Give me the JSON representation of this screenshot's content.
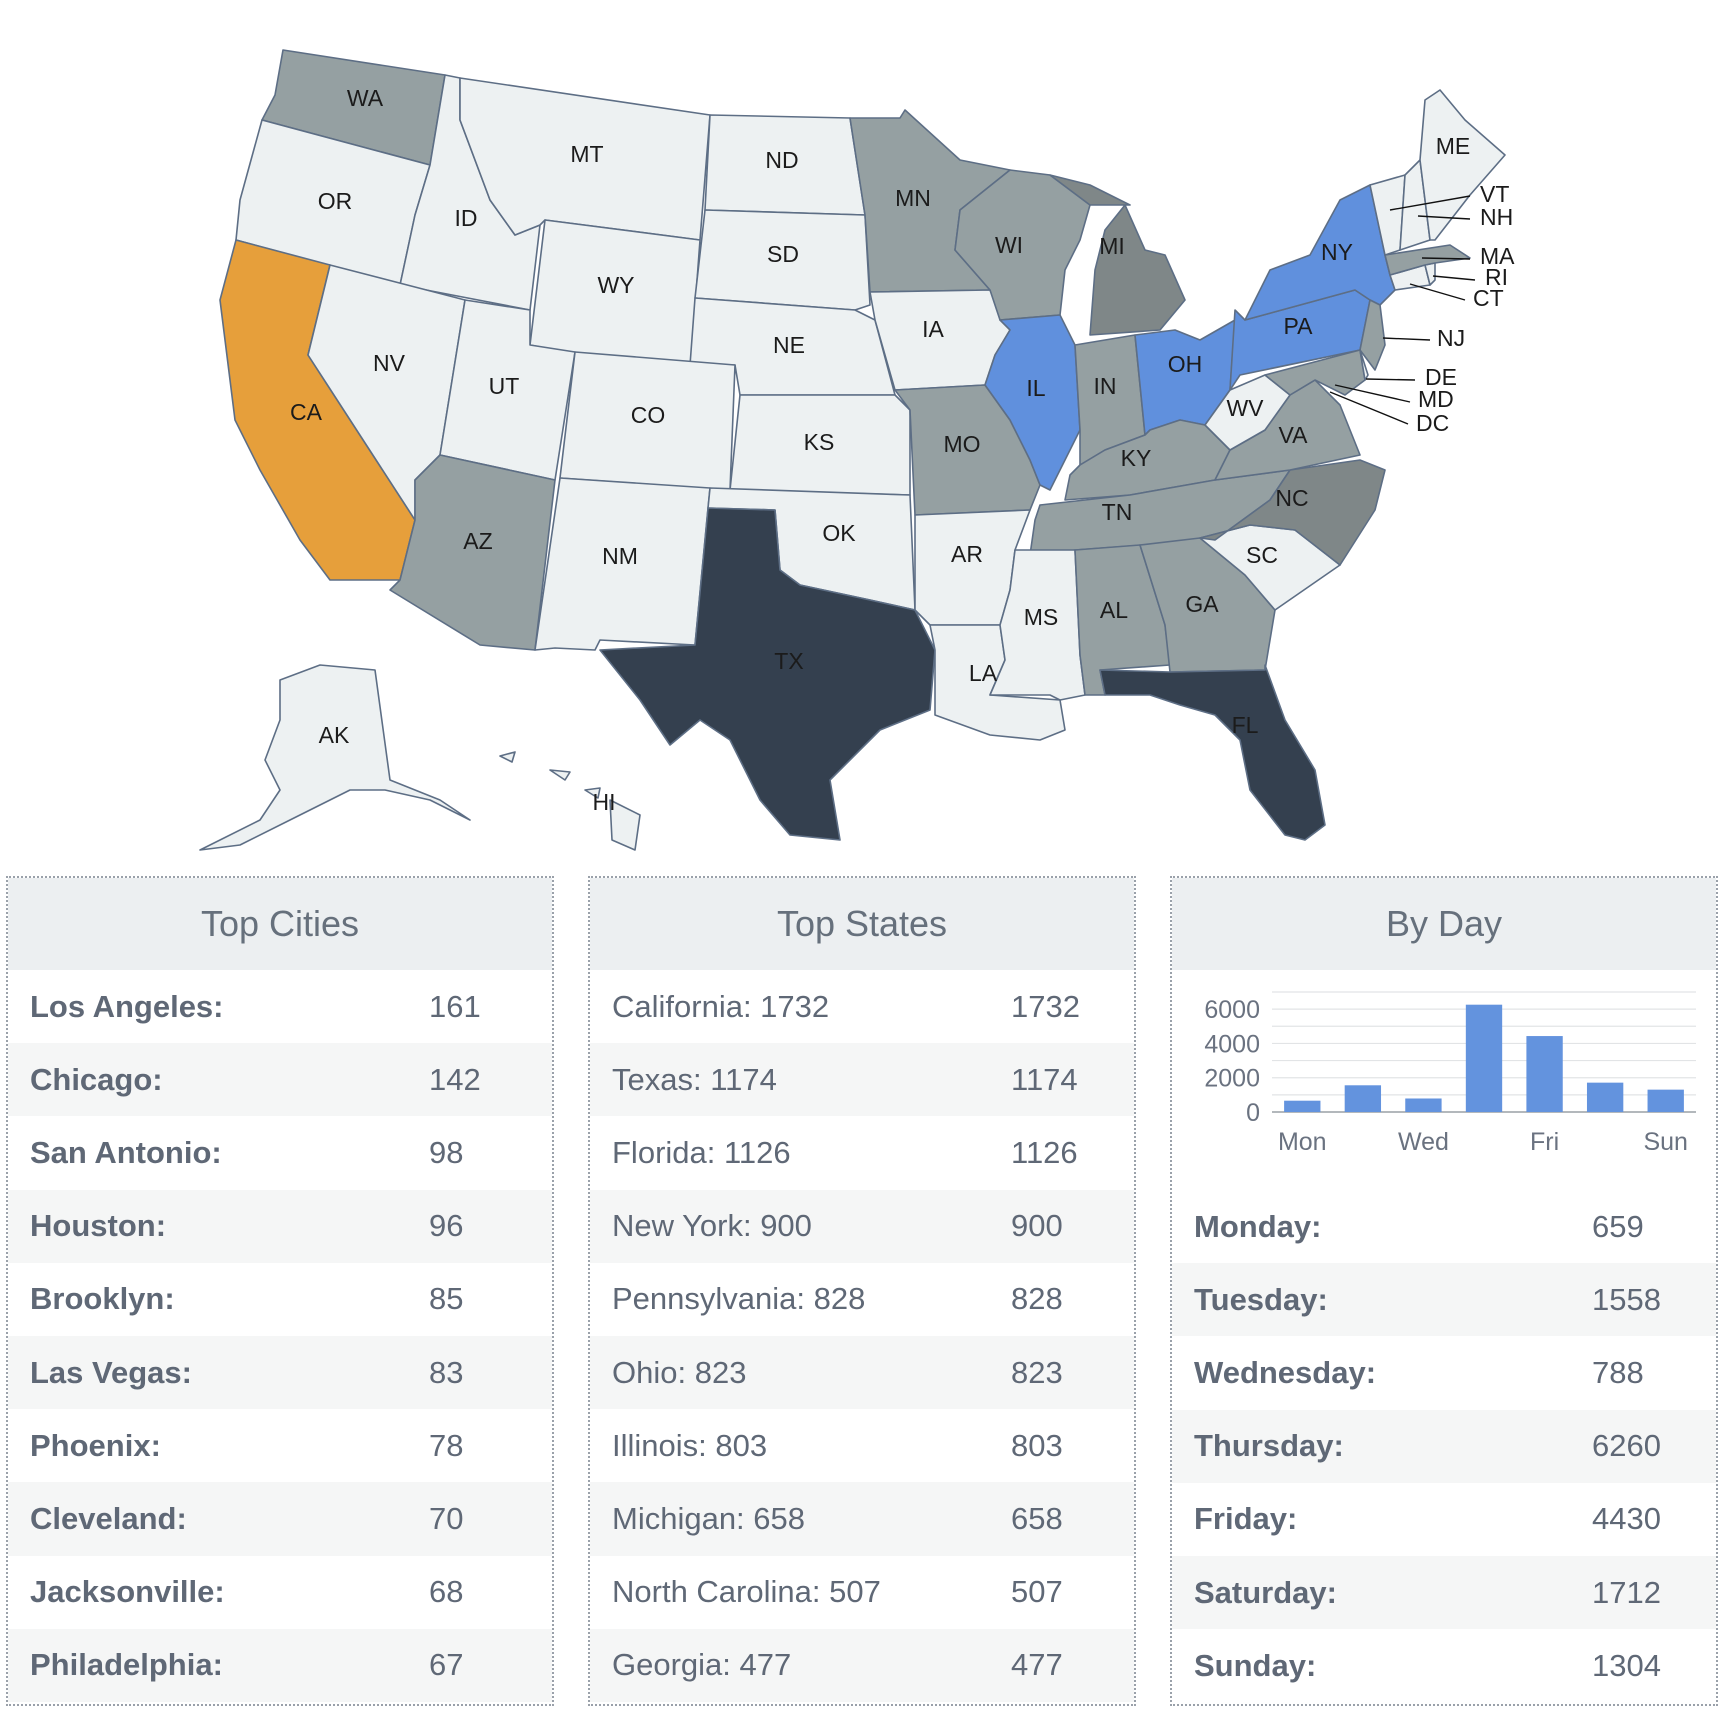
{
  "map": {
    "state_labels": [
      "WA",
      "OR",
      "CA",
      "ID",
      "NV",
      "MT",
      "WY",
      "UT",
      "AZ",
      "ND",
      "SD",
      "NE",
      "CO",
      "KS",
      "NM",
      "OK",
      "TX",
      "MN",
      "IA",
      "MO",
      "AR",
      "LA",
      "WI",
      "IL",
      "MI",
      "IN",
      "KY",
      "TN",
      "MS",
      "AL",
      "OH",
      "WV",
      "VA",
      "NC",
      "SC",
      "GA",
      "FL",
      "PA",
      "NY",
      "ME",
      "VT",
      "NH",
      "MA",
      "RI",
      "CT",
      "NJ",
      "DE",
      "MD",
      "DC",
      "AK",
      "HI"
    ],
    "colors": {
      "light": "#edf1f2",
      "gray": "#95a0a2",
      "dark_gray": "#7f8788",
      "navy": "#34404f",
      "blue": "#6090dd",
      "orange": "#e69f3b"
    },
    "state_fill": {
      "CA": "orange",
      "TX": "navy",
      "FL": "navy",
      "NY": "blue",
      "PA": "blue",
      "OH": "blue",
      "IL": "blue",
      "MI": "dark_gray",
      "NC": "dark_gray",
      "TN": "gray",
      "KY": "gray",
      "VA": "gray",
      "WA": "gray",
      "AZ": "gray",
      "MN": "gray",
      "WI": "gray",
      "IN": "gray",
      "MO": "gray",
      "GA": "gray",
      "AL": "gray",
      "MA": "gray",
      "NJ": "gray",
      "MD": "gray"
    }
  },
  "top_cities": {
    "title": "Top Cities",
    "rows": [
      {
        "name": "Los Angeles:",
        "value": "161"
      },
      {
        "name": "Chicago:",
        "value": "142"
      },
      {
        "name": "San Antonio:",
        "value": "98"
      },
      {
        "name": "Houston:",
        "value": "96"
      },
      {
        "name": "Brooklyn:",
        "value": "85"
      },
      {
        "name": "Las Vegas:",
        "value": "83"
      },
      {
        "name": "Phoenix:",
        "value": "78"
      },
      {
        "name": "Cleveland:",
        "value": "70"
      },
      {
        "name": "Jacksonville:",
        "value": "68"
      },
      {
        "name": "Philadelphia:",
        "value": "67"
      }
    ]
  },
  "top_states": {
    "title": "Top States",
    "rows": [
      {
        "name": "California: 1732",
        "value": "1732"
      },
      {
        "name": "Texas: 1174",
        "value": "1174"
      },
      {
        "name": "Florida: 1126",
        "value": "1126"
      },
      {
        "name": "New York: 900",
        "value": "900"
      },
      {
        "name": "Pennsylvania: 828",
        "value": "828"
      },
      {
        "name": "Ohio: 823",
        "value": "823"
      },
      {
        "name": "Illinois: 803",
        "value": "803"
      },
      {
        "name": "Michigan: 658",
        "value": "658"
      },
      {
        "name": "North Carolina: 507",
        "value": "507"
      },
      {
        "name": "Georgia: 477",
        "value": "477"
      }
    ]
  },
  "by_day": {
    "title": "By Day",
    "rows": [
      {
        "name": "Monday:",
        "value": "659"
      },
      {
        "name": "Tuesday:",
        "value": "1558"
      },
      {
        "name": "Wednesday:",
        "value": "788"
      },
      {
        "name": "Thursday:",
        "value": "6260"
      },
      {
        "name": "Friday:",
        "value": "4430"
      },
      {
        "name": "Saturday:",
        "value": "1712"
      },
      {
        "name": "Sunday:",
        "value": "1304"
      }
    ]
  },
  "chart_data": {
    "type": "bar",
    "categories": [
      "Mon",
      "Tue",
      "Wed",
      "Thu",
      "Fri",
      "Sat",
      "Sun"
    ],
    "x_tick_labels": [
      "Mon",
      "",
      "Wed",
      "",
      "Fri",
      "",
      "Sun"
    ],
    "values": [
      659,
      1558,
      788,
      6260,
      4430,
      1712,
      1304
    ],
    "yticks": [
      0,
      2000,
      4000,
      6000
    ],
    "ylim": [
      0,
      7000
    ],
    "bar_color": "#6393de",
    "grid": true
  }
}
